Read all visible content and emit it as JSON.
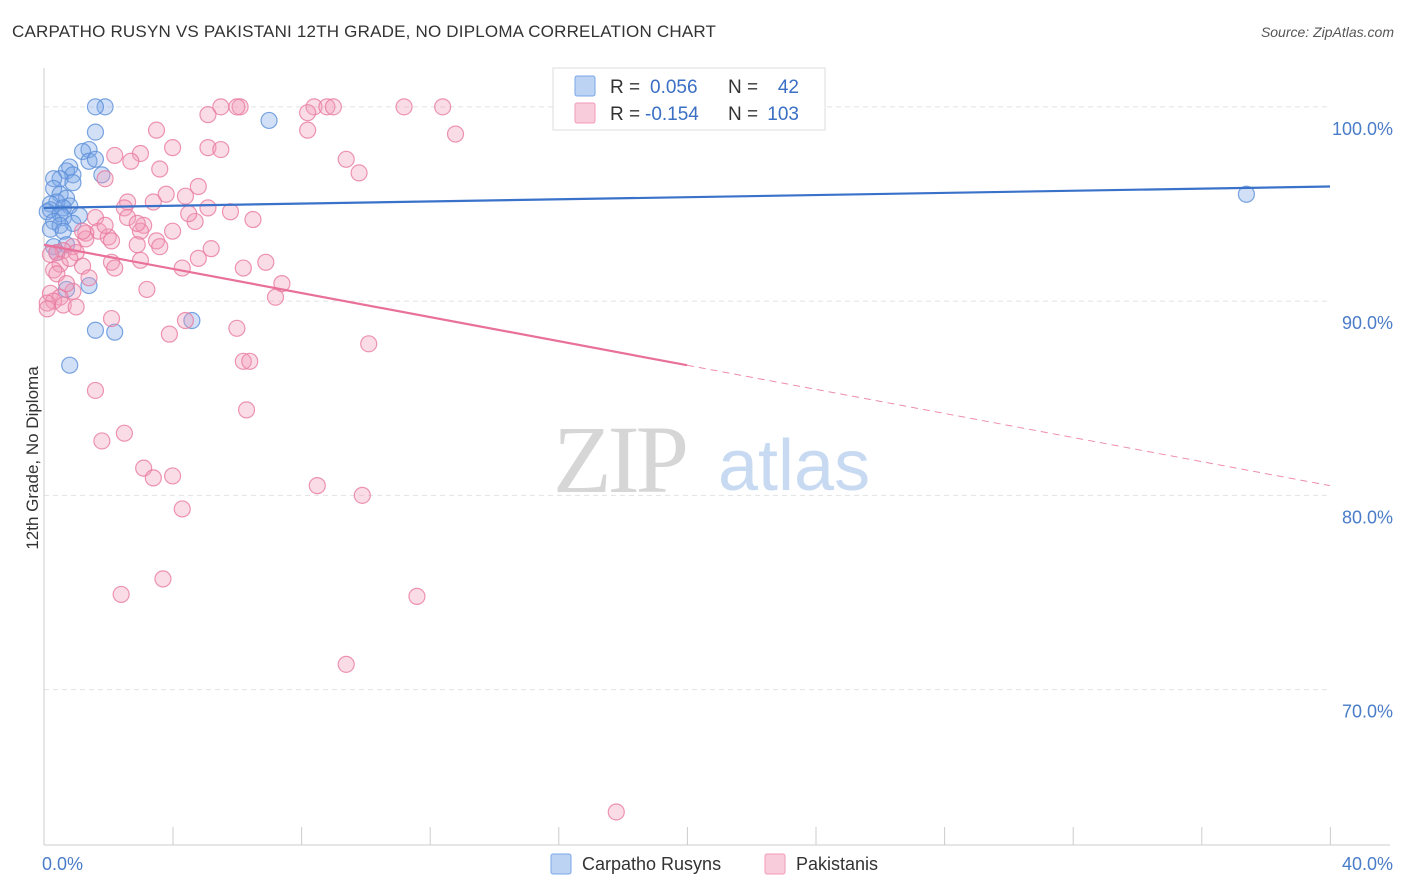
{
  "title": "CARPATHO RUSYN VS PAKISTANI 12TH GRADE, NO DIPLOMA CORRELATION CHART",
  "source": "Source: ZipAtlas.com",
  "watermark": {
    "zip": "ZIP",
    "atlas": "atlas"
  },
  "chart_data": {
    "type": "scatter",
    "ylabel": "12th Grade, No Diploma",
    "xlim": [
      0,
      40
    ],
    "ylim": [
      62,
      102
    ],
    "x_tick_labels": [
      {
        "value": 0,
        "label": "0.0%"
      },
      {
        "value": 40,
        "label": "40.0%"
      }
    ],
    "y_tick_labels": [
      {
        "value": 70,
        "label": "70.0%"
      },
      {
        "value": 80,
        "label": "80.0%"
      },
      {
        "value": 90,
        "label": "90.0%"
      },
      {
        "value": 100,
        "label": "100.0%"
      }
    ],
    "y_gridlines": [
      70,
      80,
      90,
      100
    ],
    "legend": {
      "position": "top-center",
      "rows": [
        {
          "r_label": "R =",
          "r_value": "0.056",
          "n_label": "N =",
          "n_value": "42",
          "color": "#7aa7e8"
        },
        {
          "r_label": "R =",
          "r_value": "-0.154",
          "n_label": "N =",
          "n_value": "103",
          "color": "#f29ab8"
        }
      ]
    },
    "series": [
      {
        "name": "Carpatho Rusyns",
        "color": "#7aa7e8",
        "stroke": "#5b8fd8",
        "trend": {
          "x0": 0,
          "y0": 94.8,
          "x1": 40,
          "y1": 95.9,
          "solid_to": 40
        },
        "points": [
          [
            1.9,
            100.0
          ],
          [
            1.6,
            100.0
          ],
          [
            7.0,
            99.3
          ],
          [
            1.6,
            98.7
          ],
          [
            1.4,
            97.8
          ],
          [
            1.2,
            97.7
          ],
          [
            1.4,
            97.2
          ],
          [
            1.6,
            97.3
          ],
          [
            0.8,
            96.9
          ],
          [
            0.7,
            96.7
          ],
          [
            0.9,
            96.5
          ],
          [
            1.8,
            96.5
          ],
          [
            0.5,
            96.3
          ],
          [
            0.3,
            96.3
          ],
          [
            0.9,
            96.1
          ],
          [
            0.3,
            95.8
          ],
          [
            0.5,
            95.5
          ],
          [
            0.7,
            95.3
          ],
          [
            0.4,
            95.1
          ],
          [
            0.2,
            95.0
          ],
          [
            0.8,
            94.9
          ],
          [
            0.6,
            94.8
          ],
          [
            0.2,
            94.7
          ],
          [
            0.1,
            94.6
          ],
          [
            0.5,
            94.5
          ],
          [
            1.1,
            94.4
          ],
          [
            0.6,
            94.3
          ],
          [
            0.3,
            94.1
          ],
          [
            0.9,
            94.0
          ],
          [
            0.5,
            93.9
          ],
          [
            0.2,
            93.7
          ],
          [
            0.6,
            93.6
          ],
          [
            0.3,
            92.8
          ],
          [
            0.4,
            92.5
          ],
          [
            0.7,
            92.9
          ],
          [
            1.4,
            90.8
          ],
          [
            0.7,
            90.6
          ],
          [
            4.6,
            89.0
          ],
          [
            1.6,
            88.5
          ],
          [
            2.2,
            88.4
          ],
          [
            0.8,
            86.7
          ],
          [
            37.4,
            95.5
          ]
        ]
      },
      {
        "name": "Pakistanis",
        "color": "#f29ab8",
        "stroke": "#e87aa0",
        "trend": {
          "x0": 0,
          "y0": 92.9,
          "x1": 40,
          "y1": 80.5,
          "solid_to": 20.0
        },
        "points": [
          [
            6.1,
            100.0
          ],
          [
            6.0,
            100.0
          ],
          [
            5.5,
            100.0
          ],
          [
            8.4,
            100.0
          ],
          [
            8.8,
            100.0
          ],
          [
            9.0,
            100.0
          ],
          [
            11.2,
            100.0
          ],
          [
            12.4,
            100.0
          ],
          [
            8.2,
            99.7
          ],
          [
            5.1,
            99.6
          ],
          [
            3.5,
            98.8
          ],
          [
            8.2,
            98.8
          ],
          [
            12.8,
            98.6
          ],
          [
            4.0,
            97.9
          ],
          [
            5.1,
            97.9
          ],
          [
            5.5,
            97.8
          ],
          [
            3.0,
            97.6
          ],
          [
            2.2,
            97.5
          ],
          [
            9.4,
            97.3
          ],
          [
            2.7,
            97.2
          ],
          [
            9.8,
            96.6
          ],
          [
            1.9,
            96.3
          ],
          [
            4.8,
            95.9
          ],
          [
            3.8,
            95.5
          ],
          [
            4.4,
            95.4
          ],
          [
            2.6,
            95.1
          ],
          [
            3.4,
            95.1
          ],
          [
            2.5,
            94.8
          ],
          [
            5.1,
            94.8
          ],
          [
            5.8,
            94.6
          ],
          [
            2.6,
            94.3
          ],
          [
            1.6,
            94.3
          ],
          [
            4.7,
            94.1
          ],
          [
            3.1,
            93.9
          ],
          [
            3.0,
            93.6
          ],
          [
            1.7,
            93.6
          ],
          [
            4.0,
            93.6
          ],
          [
            1.3,
            93.5
          ],
          [
            2.0,
            93.3
          ],
          [
            1.3,
            93.2
          ],
          [
            3.5,
            93.1
          ],
          [
            2.1,
            93.1
          ],
          [
            2.9,
            92.9
          ],
          [
            3.6,
            92.8
          ],
          [
            0.9,
            92.8
          ],
          [
            5.2,
            92.7
          ],
          [
            0.6,
            92.6
          ],
          [
            0.4,
            92.5
          ],
          [
            1.0,
            92.5
          ],
          [
            0.2,
            92.4
          ],
          [
            4.8,
            92.2
          ],
          [
            3.0,
            92.1
          ],
          [
            6.9,
            92.0
          ],
          [
            2.1,
            92.0
          ],
          [
            0.5,
            91.9
          ],
          [
            1.2,
            91.8
          ],
          [
            2.2,
            91.7
          ],
          [
            4.3,
            91.7
          ],
          [
            6.2,
            91.7
          ],
          [
            0.3,
            91.6
          ],
          [
            1.4,
            91.2
          ],
          [
            7.4,
            90.9
          ],
          [
            3.2,
            90.6
          ],
          [
            0.9,
            90.5
          ],
          [
            0.2,
            90.4
          ],
          [
            0.5,
            90.2
          ],
          [
            7.2,
            90.2
          ],
          [
            0.3,
            90.0
          ],
          [
            0.1,
            89.9
          ],
          [
            0.6,
            89.8
          ],
          [
            1.0,
            89.7
          ],
          [
            0.1,
            89.6
          ],
          [
            2.1,
            89.1
          ],
          [
            4.4,
            89.0
          ],
          [
            6.0,
            88.6
          ],
          [
            3.9,
            88.3
          ],
          [
            10.1,
            87.8
          ],
          [
            6.2,
            86.9
          ],
          [
            6.4,
            86.9
          ],
          [
            1.6,
            85.4
          ],
          [
            6.3,
            84.4
          ],
          [
            2.5,
            83.2
          ],
          [
            1.8,
            82.8
          ],
          [
            3.1,
            81.4
          ],
          [
            3.4,
            80.9
          ],
          [
            4.0,
            81.0
          ],
          [
            8.5,
            80.5
          ],
          [
            9.9,
            80.0
          ],
          [
            4.3,
            79.3
          ],
          [
            3.7,
            75.7
          ],
          [
            2.4,
            74.9
          ],
          [
            11.6,
            74.8
          ],
          [
            9.4,
            71.3
          ],
          [
            17.8,
            63.7
          ],
          [
            1.2,
            93.6
          ],
          [
            0.8,
            92.2
          ],
          [
            2.9,
            94.0
          ],
          [
            4.5,
            94.5
          ],
          [
            1.9,
            93.9
          ],
          [
            0.4,
            91.4
          ],
          [
            0.7,
            90.9
          ],
          [
            6.5,
            94.2
          ],
          [
            3.6,
            96.8
          ]
        ]
      }
    ]
  },
  "bottom_legend": [
    {
      "label": "Carpatho Rusyns",
      "color": "#7aa7e8"
    },
    {
      "label": "Pakistanis",
      "color": "#f29ab8"
    }
  ]
}
